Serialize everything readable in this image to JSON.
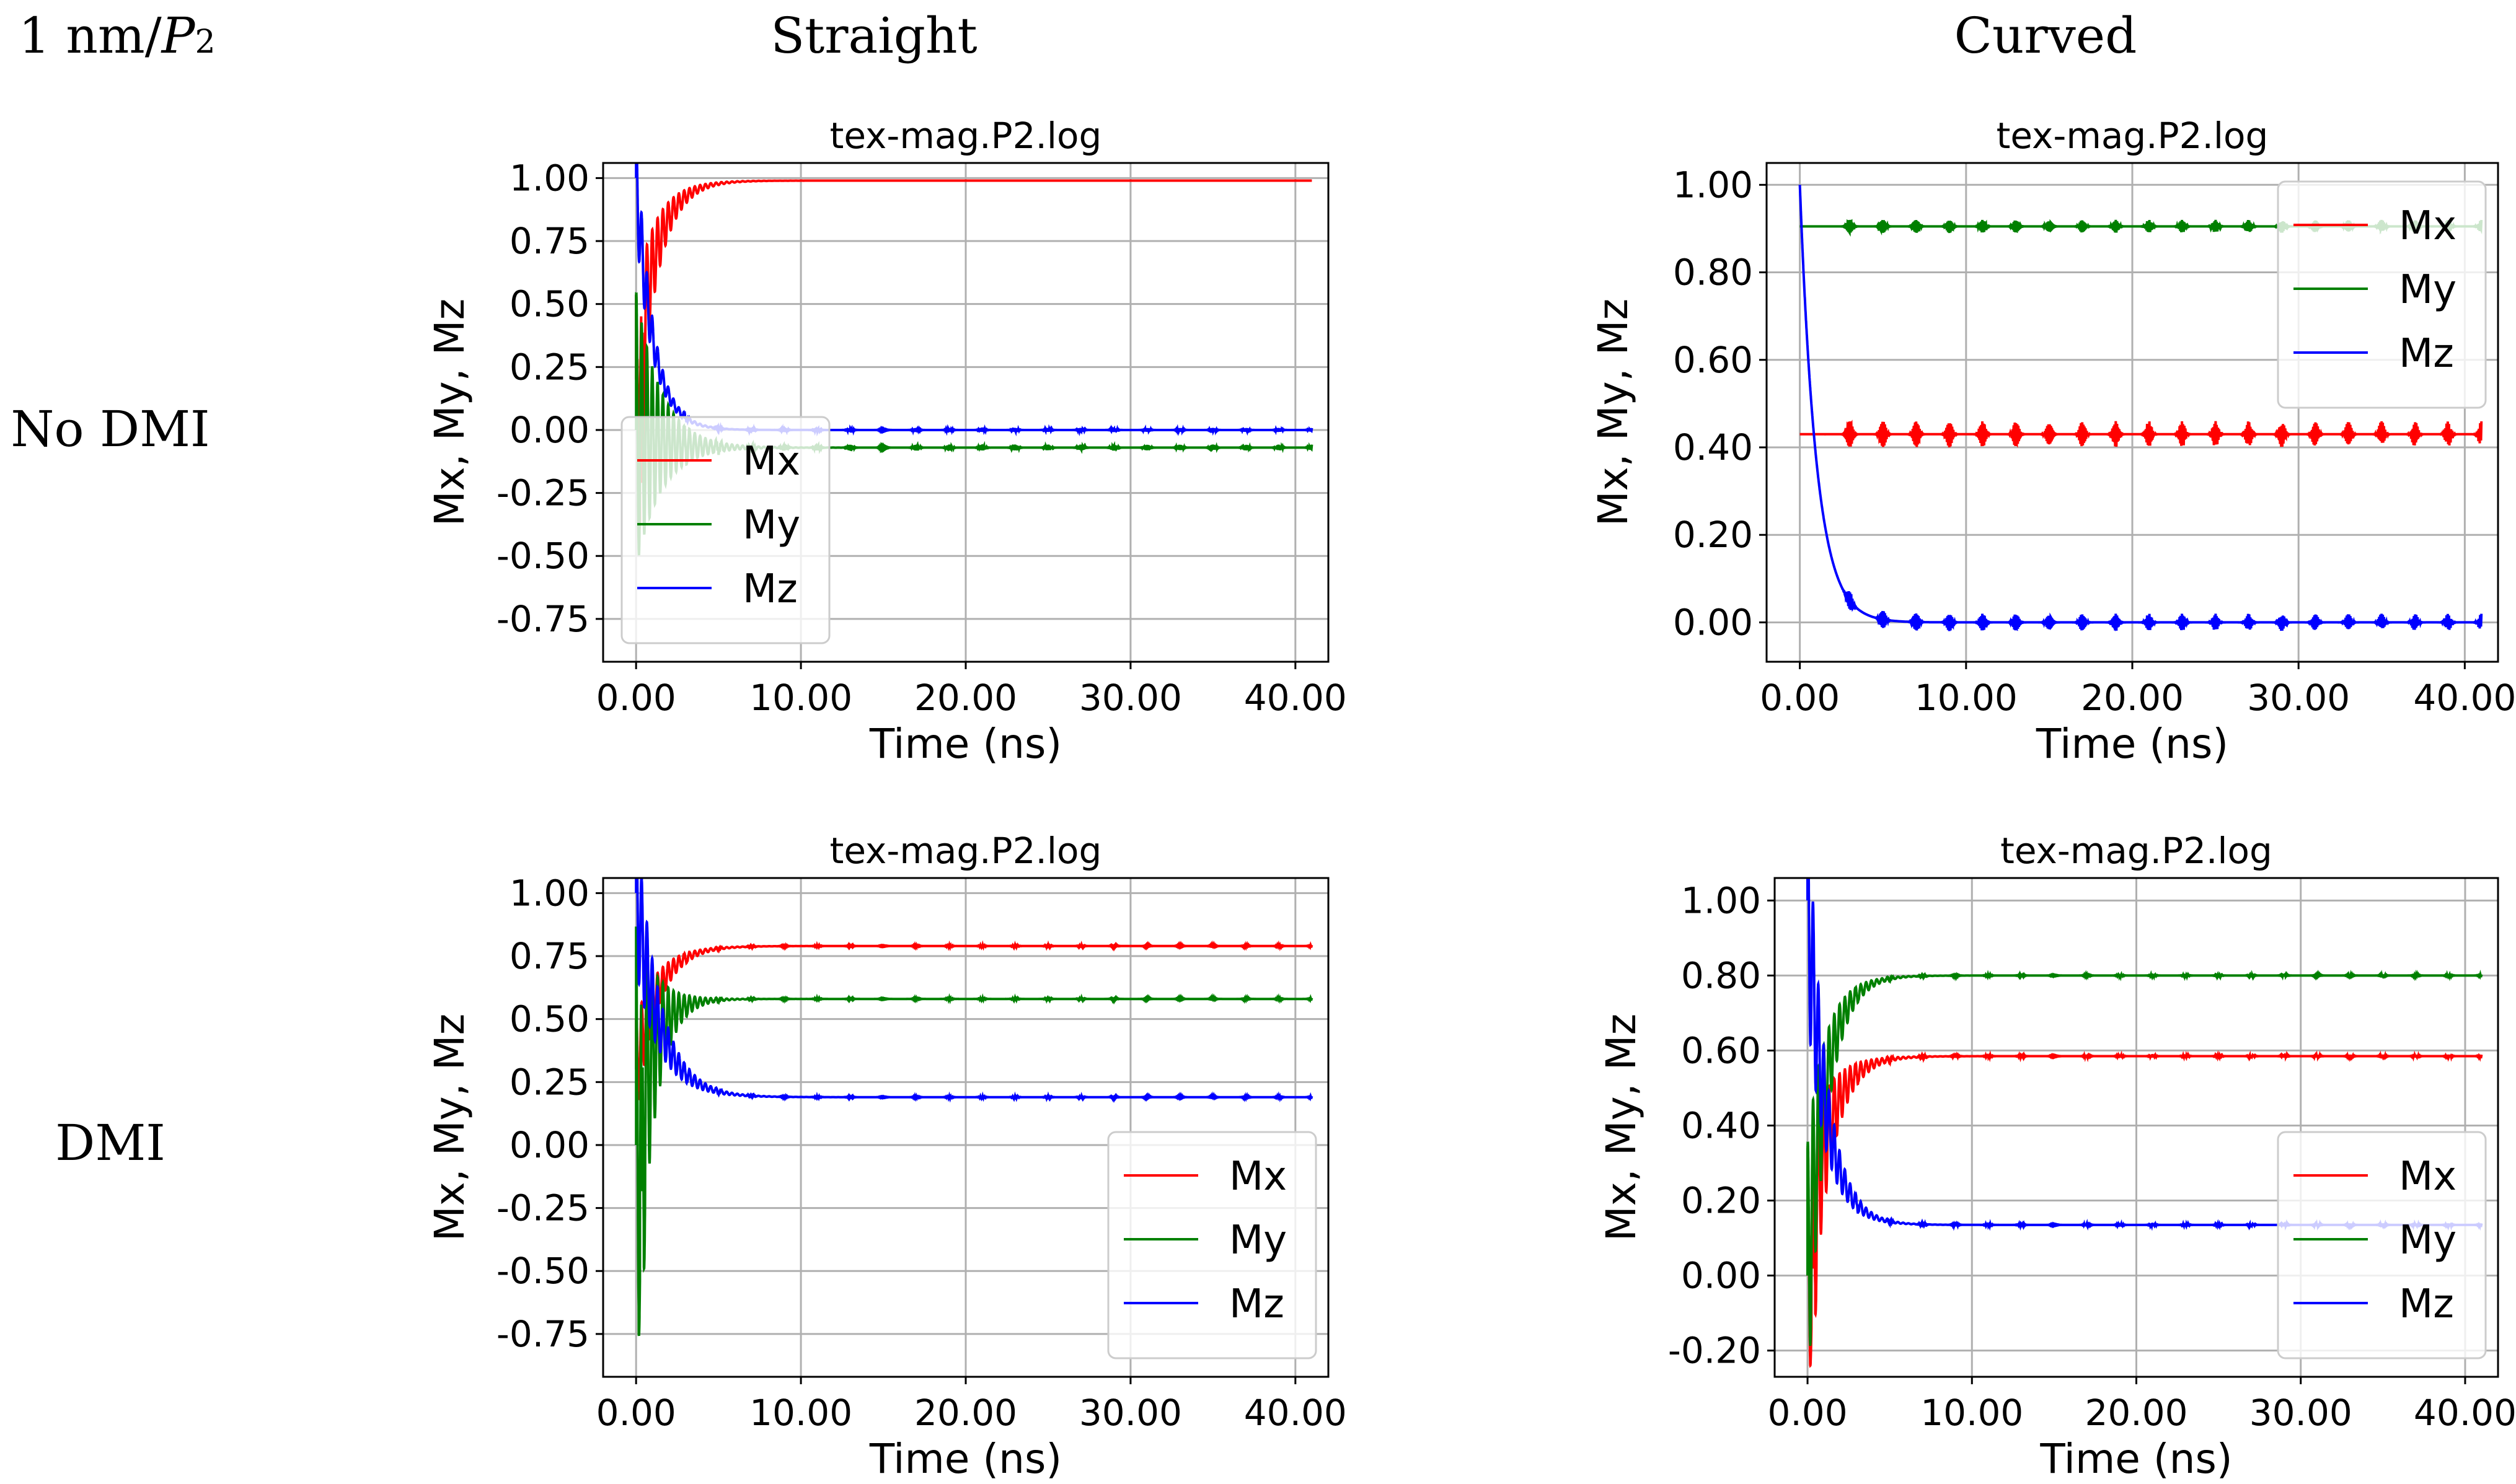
{
  "figure": {
    "corner_label_prefix": "1 nm/",
    "corner_label_var": "P",
    "corner_label_sub": "2",
    "column_headers": [
      "Straight",
      "Curved"
    ],
    "row_headers": [
      "No DMI",
      "DMI"
    ],
    "colors": {
      "Mx": "#ff0000",
      "My": "#008000",
      "Mz": "#0000ff",
      "grid": "#b0b0b0"
    }
  },
  "chart_data": [
    {
      "id": "straight-nodmi",
      "type": "line",
      "title": "tex-mag.P2.log",
      "xlabel": "Time (ns)",
      "ylabel": "Mx, My, Mz",
      "xlim": [
        -2,
        42
      ],
      "ylim": [
        -0.92,
        1.06
      ],
      "xticks": [
        0,
        10,
        20,
        30,
        40
      ],
      "xtick_labels": [
        "0.00",
        "10.00",
        "20.00",
        "30.00",
        "40.00"
      ],
      "yticks": [
        1.0,
        0.75,
        0.5,
        0.25,
        0.0,
        -0.25,
        -0.5,
        -0.75
      ],
      "ytick_labels": [
        "1.00",
        "0.75",
        "0.50",
        "0.25",
        "0.00",
        "-0.25",
        "-0.50",
        "-0.75"
      ],
      "grid": true,
      "legend_position": "lower-left",
      "x_end": 41,
      "series": [
        {
          "name": "Mx",
          "color": "#ff0000",
          "initial": 0.2,
          "final": 0.99,
          "osc_amp": 0.35,
          "decay": 1.2,
          "periodic_amp": 0.0,
          "spike_low": -0.9
        },
        {
          "name": "My",
          "color": "#008000",
          "initial": 0.0,
          "final": -0.07,
          "osc_amp": 0.55,
          "decay": 1.5,
          "periodic_amp": 0.012
        },
        {
          "name": "Mz",
          "color": "#0000ff",
          "initial": 1.0,
          "final": 0.0,
          "osc_amp": 0.2,
          "decay": 1.0,
          "periodic_amp": 0.008
        }
      ]
    },
    {
      "id": "curved-nodmi",
      "type": "line",
      "title": "tex-mag.P2.log",
      "xlabel": "Time (ns)",
      "ylabel": "Mx, My, Mz",
      "xlim": [
        -2,
        42
      ],
      "ylim": [
        -0.09,
        1.05
      ],
      "xticks": [
        0,
        10,
        20,
        30,
        40
      ],
      "xtick_labels": [
        "0.00",
        "10.00",
        "20.00",
        "30.00",
        "40.00"
      ],
      "yticks": [
        1.0,
        0.8,
        0.6,
        0.4,
        0.2,
        0.0
      ],
      "ytick_labels": [
        "1.00",
        "0.80",
        "0.60",
        "0.40",
        "0.20",
        "0.00"
      ],
      "grid": true,
      "legend_position": "upper-right",
      "x_end": 41,
      "series": [
        {
          "name": "Mx",
          "color": "#ff0000",
          "initial": 0.43,
          "final": 0.43,
          "osc_amp": 0.0,
          "decay": 1.0,
          "periodic_amp": 0.03
        },
        {
          "name": "My",
          "color": "#008000",
          "initial": 0.905,
          "final": 0.905,
          "osc_amp": 0.0,
          "decay": 1.0,
          "periodic_amp": 0.015
        },
        {
          "name": "Mz",
          "color": "#0000ff",
          "initial": 1.0,
          "final": 0.0,
          "osc_amp": 0.0,
          "decay": 1.0,
          "periodic_amp": 0.02
        }
      ]
    },
    {
      "id": "straight-dmi",
      "type": "line",
      "title": "tex-mag.P2.log",
      "xlabel": "Time (ns)",
      "ylabel": "Mx, My, Mz",
      "xlim": [
        -2,
        42
      ],
      "ylim": [
        -0.92,
        1.06
      ],
      "xticks": [
        0,
        10,
        20,
        30,
        40
      ],
      "xtick_labels": [
        "0.00",
        "10.00",
        "20.00",
        "30.00",
        "40.00"
      ],
      "yticks": [
        1.0,
        0.75,
        0.5,
        0.25,
        0.0,
        -0.25,
        -0.5,
        -0.75
      ],
      "ytick_labels": [
        "1.00",
        "0.75",
        "0.50",
        "0.25",
        "0.00",
        "-0.25",
        "-0.50",
        "-0.75"
      ],
      "grid": true,
      "legend_position": "lower-right",
      "x_end": 41,
      "series": [
        {
          "name": "Mx",
          "color": "#ff0000",
          "initial": 0.3,
          "final": 0.79,
          "osc_amp": 0.2,
          "decay": 1.3,
          "periodic_amp": 0.004
        },
        {
          "name": "My",
          "color": "#008000",
          "initial": 0.0,
          "final": 0.58,
          "osc_amp": 0.9,
          "decay": 1.0,
          "periodic_amp": 0.004,
          "spike_low": -0.88
        },
        {
          "name": "Mz",
          "color": "#0000ff",
          "initial": 1.0,
          "final": 0.19,
          "osc_amp": 0.3,
          "decay": 1.4,
          "periodic_amp": 0.004
        }
      ]
    },
    {
      "id": "curved-dmi",
      "type": "line",
      "title": "tex-mag.P2.log",
      "xlabel": "Time (ns)",
      "ylabel": "Mx, My, Mz",
      "xlim": [
        -2,
        42
      ],
      "ylim": [
        -0.27,
        1.06
      ],
      "xticks": [
        0,
        10,
        20,
        30,
        40
      ],
      "xtick_labels": [
        "0.00",
        "10.00",
        "20.00",
        "30.00",
        "40.00"
      ],
      "yticks": [
        1.0,
        0.8,
        0.6,
        0.4,
        0.2,
        0.0,
        -0.2
      ],
      "ytick_labels": [
        "1.00",
        "0.80",
        "0.60",
        "0.40",
        "0.20",
        "0.00",
        "-0.20"
      ],
      "grid": true,
      "legend_position": "lower-right",
      "x_end": 41,
      "series": [
        {
          "name": "Mx",
          "color": "#ff0000",
          "initial": 0.0,
          "final": 0.585,
          "osc_amp": 0.35,
          "decay": 1.2,
          "periodic_amp": 0.004,
          "spike_low": -0.26
        },
        {
          "name": "My",
          "color": "#008000",
          "initial": 0.0,
          "final": 0.8,
          "osc_amp": 0.35,
          "decay": 1.1,
          "periodic_amp": 0.003
        },
        {
          "name": "Mz",
          "color": "#0000ff",
          "initial": 1.0,
          "final": 0.135,
          "osc_amp": 0.3,
          "decay": 1.1,
          "periodic_amp": 0.004
        }
      ]
    }
  ]
}
